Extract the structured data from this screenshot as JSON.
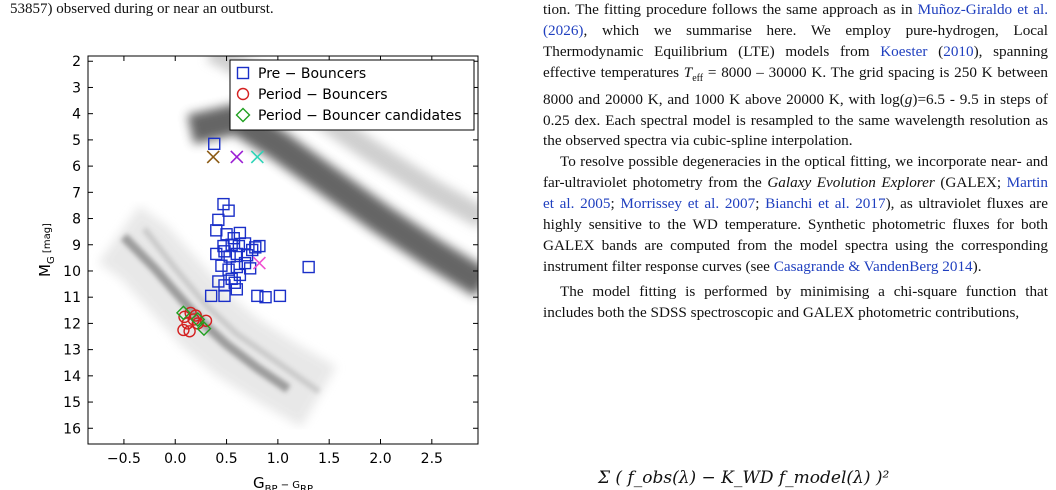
{
  "caption": {
    "tail": "53857) observed during or near an outburst."
  },
  "body": {
    "p1_start": "tion. The fitting procedure follows the same approach as in ",
    "cite_munoz": "Muñoz-Giraldo et al. (2026)",
    "p1_a": ", which we summarise here. We employ pure-hydrogen, Local Thermodynamic Equilibrium (LTE) models from ",
    "cite_koester": "Koester",
    "cite_koester_year": "2010",
    "p1_b": "), spanning effective temperatures ",
    "teff_symbol": "T",
    "teff_sub": "eff",
    "p1_c": " = 8000 – 30000 K. The grid spacing is 250 K between 8000 and 20000 K, and 1000 K above 20000 K, with log(",
    "g_symbol": "g",
    "p1_d": ")=6.5 - 9.5 in steps of 0.25 dex. Each spectral model is resampled to the same wavelength resolution as the observed spectra via cubic-spline interpolation.",
    "p2_a": "To resolve possible degeneracies in the optical fitting, we incorporate near- and far-ultraviolet photometry from the ",
    "galex_name": "Galaxy Evolution Explorer",
    "p2_b": " (GALEX; ",
    "cite_martin": "Martin et al. 2005",
    "sep1": "; ",
    "cite_morrissey": "Morrissey et al. 2007",
    "sep2": "; ",
    "cite_bianchi": "Bianchi et al. 2017",
    "p2_c": "), as ultraviolet fluxes are highly sensitive to the WD temperature. Synthetic photometric fluxes for both GALEX bands are computed from the model spectra using the corresponding instrument filter response curves (see ",
    "cite_casagrande": "Casagrande & VandenBerg 2014",
    "p2_d": ").",
    "p3": "The model fitting is performed by minimising a chi-square function that includes both the SDSS spectroscopic and GALEX photometric contributions,",
    "equation_fragment": "Σ ( f_obs(λ) − K_WD f_model(λ) )²"
  },
  "chart_data": {
    "type": "scatter",
    "xlabel": "G",
    "xlabel_sub": "BP",
    "xlabel_mid": " − G",
    "xlabel_sub2": "RP",
    "ylabel": "M",
    "ylabel_sub": "G",
    "ylabel_unit": " [mag]",
    "xlim": [
      -0.85,
      2.95
    ],
    "ylim": [
      16.6,
      1.8
    ],
    "y_inverted": true,
    "x_ticks": [
      -0.5,
      0.0,
      0.5,
      1.0,
      1.5,
      2.0,
      2.5
    ],
    "x_tick_labels": [
      "−0.5",
      "0.0",
      "0.5",
      "1.0",
      "1.5",
      "2.0",
      "2.5"
    ],
    "y_ticks": [
      2,
      3,
      4,
      5,
      6,
      7,
      8,
      9,
      10,
      11,
      12,
      13,
      14,
      15,
      16
    ],
    "y_tick_labels": [
      "2",
      "3",
      "4",
      "5",
      "6",
      "7",
      "8",
      "9",
      "10",
      "11",
      "12",
      "13",
      "14",
      "15",
      "16"
    ],
    "grid": false,
    "legend_position": "top-right",
    "background": "Gaia white dwarf and main-sequence density (grey)",
    "series": [
      {
        "name": "Pre − Bouncers",
        "marker": "square",
        "color": "#1a2fc8",
        "points": [
          [
            0.38,
            5.15
          ],
          [
            0.42,
            8.05
          ],
          [
            0.47,
            7.45
          ],
          [
            0.52,
            7.7
          ],
          [
            0.4,
            8.45
          ],
          [
            0.5,
            8.6
          ],
          [
            0.57,
            8.75
          ],
          [
            0.63,
            8.55
          ],
          [
            0.47,
            9.05
          ],
          [
            0.55,
            9.0
          ],
          [
            0.62,
            9.05
          ],
          [
            0.68,
            8.95
          ],
          [
            0.78,
            9.1
          ],
          [
            0.82,
            9.05
          ],
          [
            0.4,
            9.35
          ],
          [
            0.48,
            9.25
          ],
          [
            0.53,
            9.45
          ],
          [
            0.6,
            9.35
          ],
          [
            0.7,
            9.4
          ],
          [
            0.75,
            9.2
          ],
          [
            0.45,
            9.8
          ],
          [
            0.52,
            9.95
          ],
          [
            0.6,
            9.85
          ],
          [
            0.68,
            9.7
          ],
          [
            0.73,
            9.9
          ],
          [
            0.63,
            10.15
          ],
          [
            0.55,
            10.3
          ],
          [
            0.42,
            10.4
          ],
          [
            0.48,
            10.55
          ],
          [
            0.58,
            10.45
          ],
          [
            0.35,
            10.95
          ],
          [
            0.48,
            10.95
          ],
          [
            0.6,
            10.7
          ],
          [
            0.8,
            10.95
          ],
          [
            0.88,
            11.0
          ],
          [
            1.02,
            10.95
          ],
          [
            1.3,
            9.85
          ]
        ]
      },
      {
        "name": "Period − Bouncers",
        "marker": "circle",
        "color": "#d42020",
        "points": [
          [
            0.08,
            12.25
          ],
          [
            0.12,
            12.0
          ],
          [
            0.15,
            11.6
          ],
          [
            0.18,
            11.85
          ],
          [
            0.22,
            12.0
          ],
          [
            0.14,
            12.3
          ],
          [
            0.2,
            11.7
          ],
          [
            0.3,
            11.9
          ],
          [
            0.09,
            11.75
          ]
        ]
      },
      {
        "name": "Period − Bouncer candidates",
        "marker": "diamond",
        "color": "#20a020",
        "points": [
          [
            0.08,
            11.6
          ],
          [
            0.22,
            11.85
          ],
          [
            0.28,
            12.2
          ]
        ]
      }
    ],
    "cross_markers": [
      {
        "x": 0.37,
        "y": 5.65,
        "color": "#8b5a14"
      },
      {
        "x": 0.6,
        "y": 5.65,
        "color": "#9b1fd4"
      },
      {
        "x": 0.8,
        "y": 5.65,
        "color": "#2ed4b8"
      },
      {
        "x": 0.82,
        "y": 9.7,
        "color": "#f050d0"
      }
    ]
  }
}
